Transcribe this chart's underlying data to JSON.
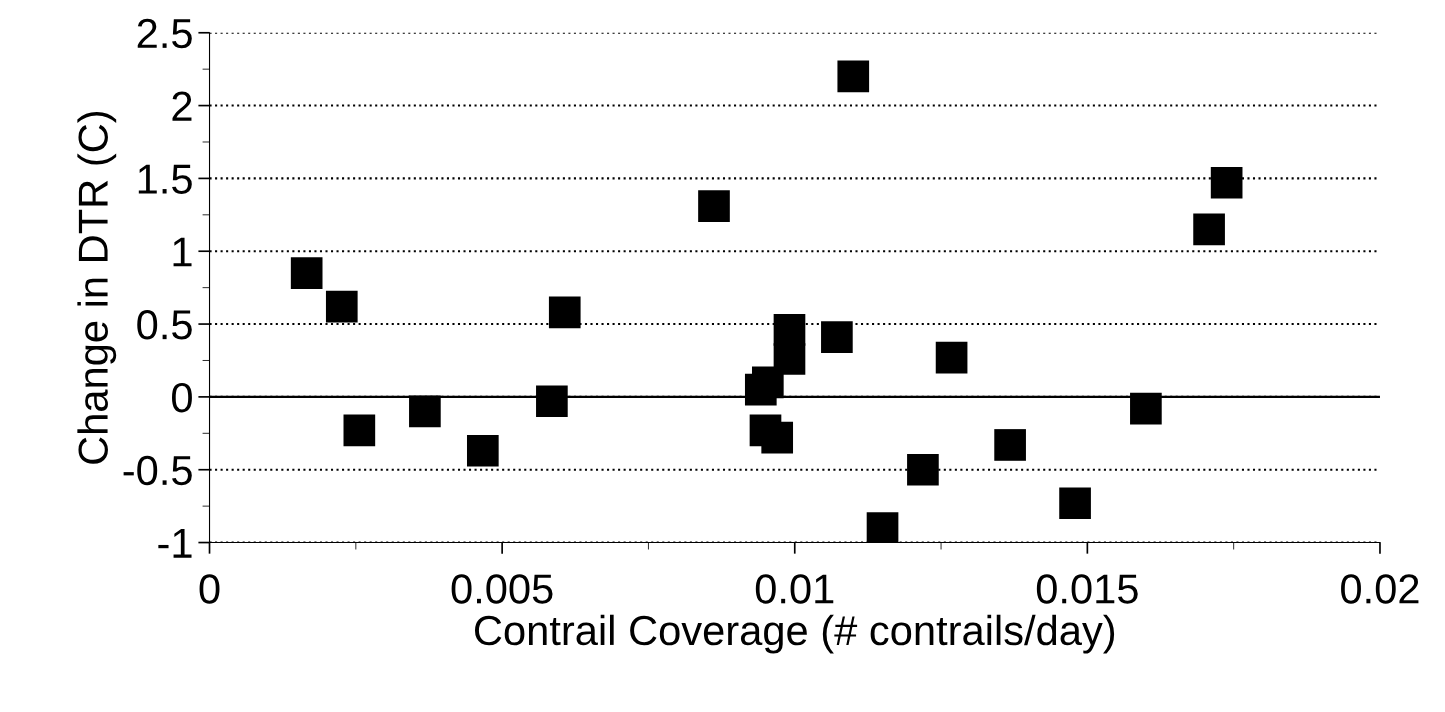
{
  "chart_data": {
    "type": "scatter",
    "xlabel": "Contrail Coverage (# contrails/day)",
    "ylabel": "Change in DTR (C)",
    "x": [
      0.00166,
      0.00226,
      0.00256,
      0.00368,
      0.00467,
      0.00585,
      0.00607,
      0.00862,
      0.00942,
      0.00954,
      0.0095,
      0.0097,
      0.00991,
      0.00991,
      0.01072,
      0.011,
      0.0115,
      0.01219,
      0.01268,
      0.01368,
      0.01479,
      0.016,
      0.01708,
      0.01738
    ],
    "series": [
      {
        "color": "#000000",
        "values": [
          0.85,
          0.62,
          -0.23,
          -0.1,
          -0.37,
          -0.03,
          0.58,
          1.31,
          0.05,
          0.1,
          -0.23,
          -0.28,
          0.46,
          0.26,
          0.41,
          2.2,
          -0.9,
          -0.5,
          0.27,
          -0.33,
          -0.73,
          -0.08,
          1.15,
          1.47
        ]
      }
    ],
    "xlim": [
      0,
      0.02
    ],
    "xticks": [
      0,
      0.005,
      0.01,
      0.015,
      0.02
    ],
    "ylim": [
      -1,
      2.5
    ],
    "yticks": [
      -1,
      -0.5,
      0,
      0.5,
      1,
      1.5,
      2,
      2.5
    ],
    "ref_lines": [
      {
        "axis": "y",
        "value": 0,
        "color": "#000000",
        "line_style": "solid"
      }
    ],
    "grid": "y",
    "marker": "square"
  }
}
